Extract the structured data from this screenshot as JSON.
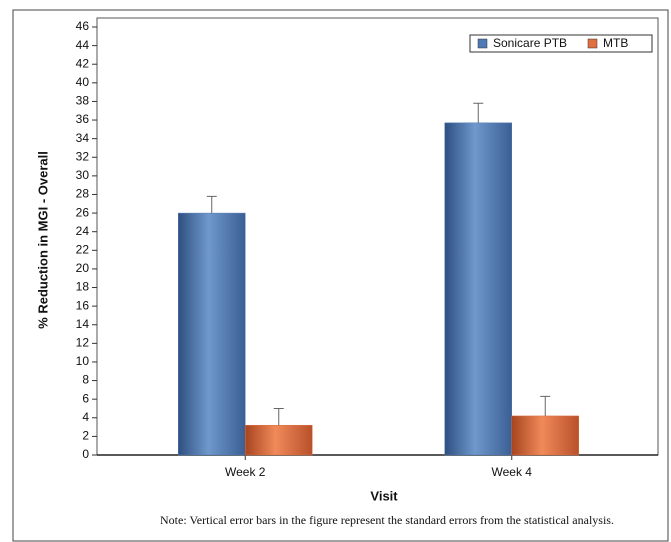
{
  "chart_data": {
    "type": "bar",
    "x_label": "Visit",
    "y_label": "% Reduction in MGI - Overall",
    "note": "Note: Vertical error bars in the figure represent the standard errors from the statistical analysis.",
    "categories": [
      "Week 2",
      "Week 4"
    ],
    "series": [
      {
        "name": "Sonicare PTB",
        "color": "#4f7bb5",
        "values": [
          26,
          35.7
        ],
        "errors": [
          1.8,
          2.1
        ]
      },
      {
        "name": "MTB",
        "color": "#e0703f",
        "values": [
          3.2,
          4.2
        ],
        "errors": [
          1.8,
          2.1
        ]
      }
    ],
    "ylim": [
      0,
      46
    ],
    "yticks": [
      0,
      2,
      4,
      6,
      8,
      10,
      12,
      14,
      16,
      18,
      20,
      22,
      24,
      26,
      28,
      30,
      32,
      34,
      36,
      38,
      40,
      42,
      44,
      46
    ],
    "legend": "top-right"
  }
}
